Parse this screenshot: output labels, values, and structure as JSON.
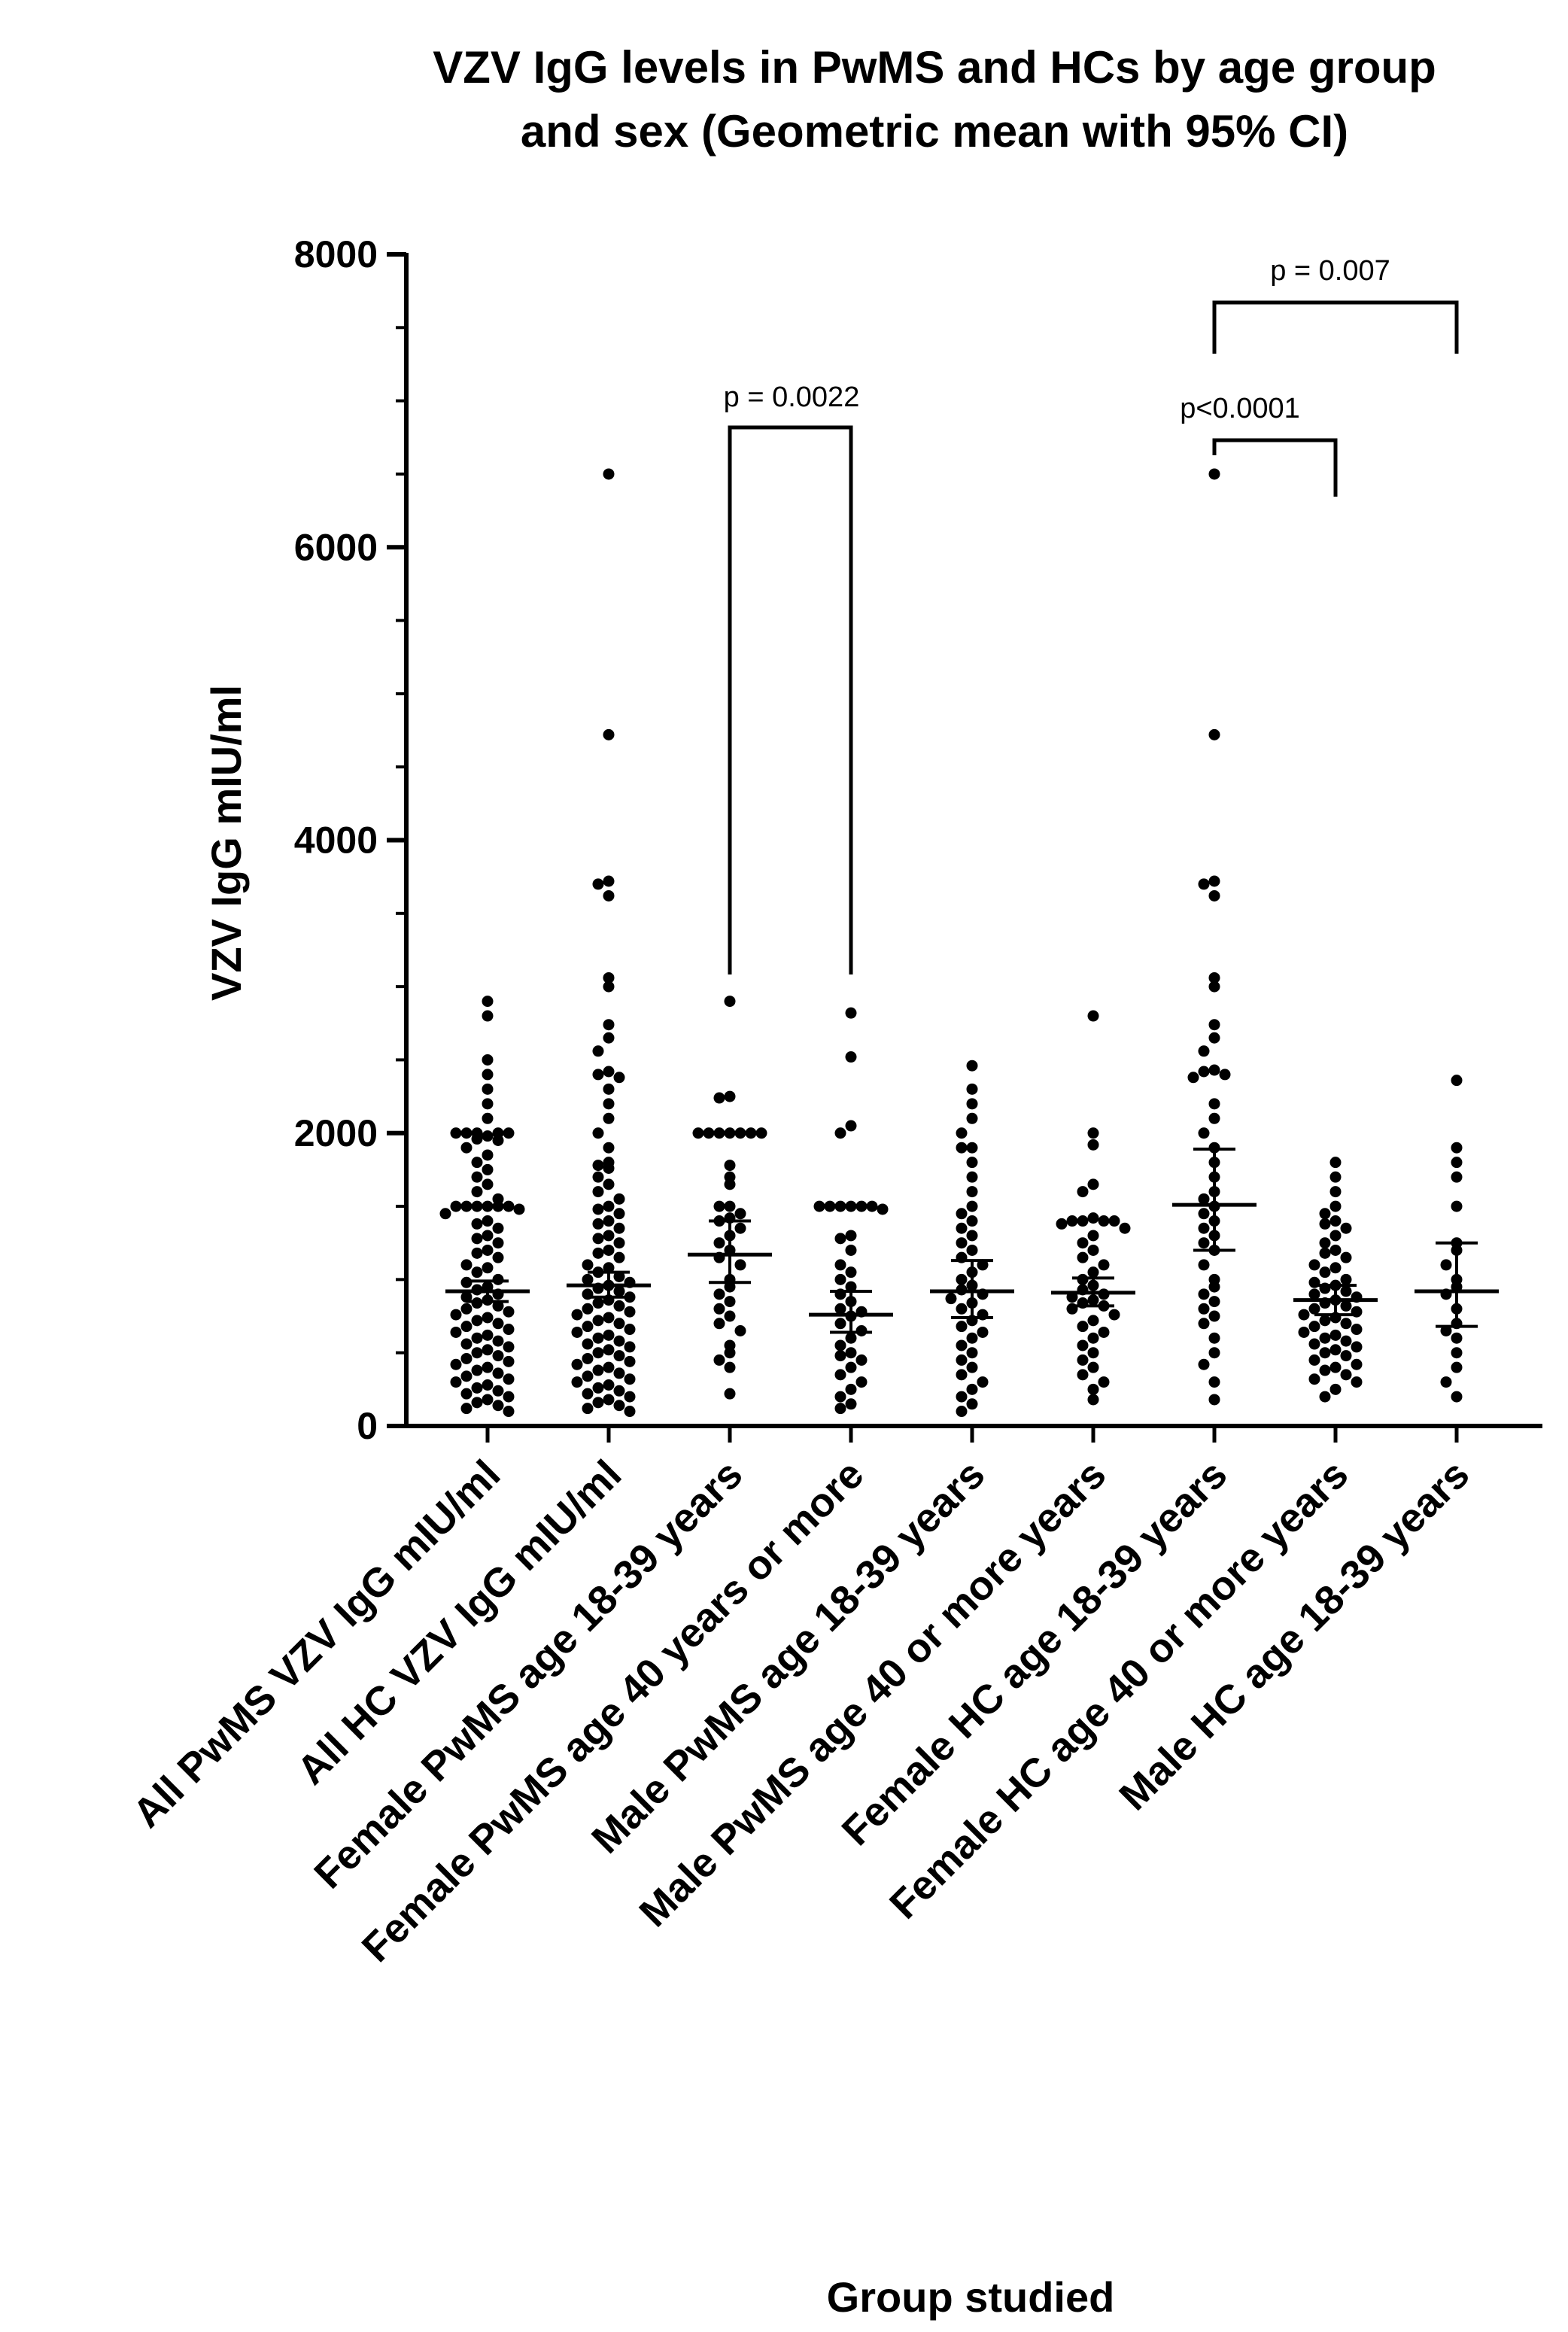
{
  "chart_data": {
    "type": "scatter",
    "title_lines": [
      "VZV IgG levels in PwMS and HCs by age group",
      "and sex (Geometric mean with 95% CI)"
    ],
    "xlabel": "Group studied",
    "ylabel": "VZV IgG mIU/ml",
    "ylim": [
      0,
      8000
    ],
    "yticks": [
      0,
      2000,
      4000,
      6000,
      8000
    ],
    "grid": false,
    "categories": [
      "All PwMS VZV IgG mIU/ml",
      "All HC VZV IgG mIU/ml",
      "Female PwMS age 18-39 years",
      "Female PwMS age 40 years or more",
      "Male PwMS age 18-39 years",
      "Male PwMS age 40 or more years",
      "Female HC age 18-39 years",
      "Female HC age 40 or more years",
      "Male HC age 18-39 years"
    ],
    "groups": [
      {
        "geo_mean": 920,
        "ci": [
          850,
          990
        ],
        "values": [
          2900,
          2800,
          2500,
          2400,
          2300,
          2200,
          2100,
          2000,
          2000,
          2000,
          2000,
          2000,
          1980,
          1960,
          1950,
          1900,
          1850,
          1800,
          1750,
          1700,
          1650,
          1600,
          1550,
          1500,
          1500,
          1500,
          1500,
          1500,
          1500,
          1480,
          1450,
          1400,
          1380,
          1350,
          1300,
          1280,
          1250,
          1200,
          1180,
          1150,
          1100,
          1080,
          1050,
          1000,
          980,
          950,
          930,
          900,
          880,
          860,
          840,
          820,
          800,
          780,
          760,
          740,
          720,
          700,
          680,
          660,
          640,
          620,
          600,
          580,
          560,
          540,
          520,
          500,
          480,
          460,
          440,
          420,
          400,
          380,
          360,
          340,
          320,
          300,
          280,
          260,
          240,
          220,
          200,
          180,
          160,
          140,
          120,
          100
        ]
      },
      {
        "geo_mean": 960,
        "ci": [
          880,
          1050
        ],
        "values": [
          6500,
          4720,
          3720,
          3700,
          3620,
          3060,
          3000,
          2740,
          2650,
          2560,
          2420,
          2400,
          2380,
          2300,
          2200,
          2100,
          2000,
          1900,
          1800,
          1780,
          1760,
          1700,
          1650,
          1600,
          1550,
          1500,
          1480,
          1450,
          1400,
          1380,
          1350,
          1300,
          1280,
          1250,
          1200,
          1180,
          1150,
          1100,
          1080,
          1050,
          1020,
          1000,
          980,
          960,
          940,
          920,
          900,
          880,
          860,
          840,
          820,
          800,
          780,
          760,
          740,
          720,
          700,
          680,
          660,
          640,
          620,
          600,
          580,
          560,
          540,
          520,
          500,
          480,
          460,
          440,
          420,
          400,
          380,
          360,
          340,
          320,
          300,
          280,
          260,
          240,
          220,
          200,
          180,
          160,
          140,
          120,
          100
        ]
      },
      {
        "geo_mean": 1170,
        "ci": [
          980,
          1400
        ],
        "values": [
          2900,
          2250,
          2240,
          2000,
          2000,
          2000,
          2000,
          2000,
          2000,
          2000,
          1780,
          1700,
          1650,
          1500,
          1500,
          1450,
          1420,
          1400,
          1350,
          1300,
          1250,
          1200,
          1150,
          1100,
          1000,
          950,
          900,
          850,
          800,
          750,
          700,
          650,
          550,
          500,
          450,
          400,
          220
        ]
      },
      {
        "geo_mean": 760,
        "ci": [
          640,
          920
        ],
        "values": [
          2820,
          2520,
          2050,
          2000,
          1500,
          1500,
          1500,
          1500,
          1500,
          1500,
          1480,
          1300,
          1280,
          1200,
          1100,
          1050,
          1000,
          950,
          900,
          850,
          800,
          780,
          750,
          700,
          650,
          600,
          550,
          500,
          480,
          450,
          400,
          350,
          300,
          250,
          200,
          150,
          120
        ]
      },
      {
        "geo_mean": 920,
        "ci": [
          740,
          1130
        ],
        "values": [
          2460,
          2300,
          2200,
          2100,
          2000,
          1900,
          1900,
          1800,
          1700,
          1600,
          1500,
          1450,
          1400,
          1350,
          1300,
          1250,
          1200,
          1150,
          1100,
          1050,
          1000,
          960,
          930,
          900,
          870,
          840,
          800,
          760,
          720,
          680,
          640,
          600,
          550,
          500,
          450,
          400,
          350,
          300,
          250,
          200,
          150,
          100
        ]
      },
      {
        "geo_mean": 910,
        "ci": [
          820,
          1010
        ],
        "values": [
          2800,
          2000,
          1920,
          1650,
          1600,
          1420,
          1400,
          1400,
          1400,
          1400,
          1380,
          1350,
          1300,
          1250,
          1200,
          1150,
          1100,
          1050,
          1000,
          960,
          930,
          900,
          880,
          860,
          840,
          820,
          800,
          760,
          720,
          680,
          640,
          600,
          550,
          500,
          450,
          400,
          350,
          300,
          250,
          180
        ]
      },
      {
        "geo_mean": 1510,
        "ci": [
          1200,
          1890
        ],
        "values": [
          6500,
          4720,
          3720,
          3700,
          3620,
          3060,
          3000,
          2740,
          2650,
          2560,
          2430,
          2420,
          2400,
          2380,
          2200,
          2100,
          2000,
          1900,
          1800,
          1700,
          1600,
          1550,
          1500,
          1450,
          1400,
          1350,
          1300,
          1250,
          1200,
          1100,
          1000,
          950,
          900,
          850,
          800,
          750,
          700,
          600,
          500,
          420,
          300,
          180
        ]
      },
      {
        "geo_mean": 860,
        "ci": [
          760,
          960
        ],
        "values": [
          1800,
          1700,
          1600,
          1500,
          1450,
          1400,
          1380,
          1350,
          1300,
          1250,
          1200,
          1180,
          1150,
          1100,
          1080,
          1050,
          1000,
          980,
          960,
          940,
          920,
          900,
          880,
          860,
          840,
          820,
          800,
          780,
          760,
          740,
          720,
          700,
          680,
          660,
          640,
          620,
          600,
          580,
          560,
          540,
          520,
          500,
          480,
          450,
          420,
          400,
          380,
          350,
          320,
          300,
          250,
          200
        ]
      },
      {
        "geo_mean": 920,
        "ci": [
          680,
          1250
        ],
        "values": [
          2360,
          1900,
          1800,
          1700,
          1500,
          1250,
          1200,
          1100,
          1000,
          950,
          900,
          800,
          700,
          650,
          600,
          500,
          400,
          300,
          200
        ]
      }
    ],
    "significance": [
      {
        "from": 2,
        "to": 3,
        "label": "p = 0.0022"
      },
      {
        "from": 6,
        "to": 7,
        "label": "p<0.0001"
      },
      {
        "from": 6,
        "to": 8,
        "label": "p = 0.007"
      }
    ]
  }
}
